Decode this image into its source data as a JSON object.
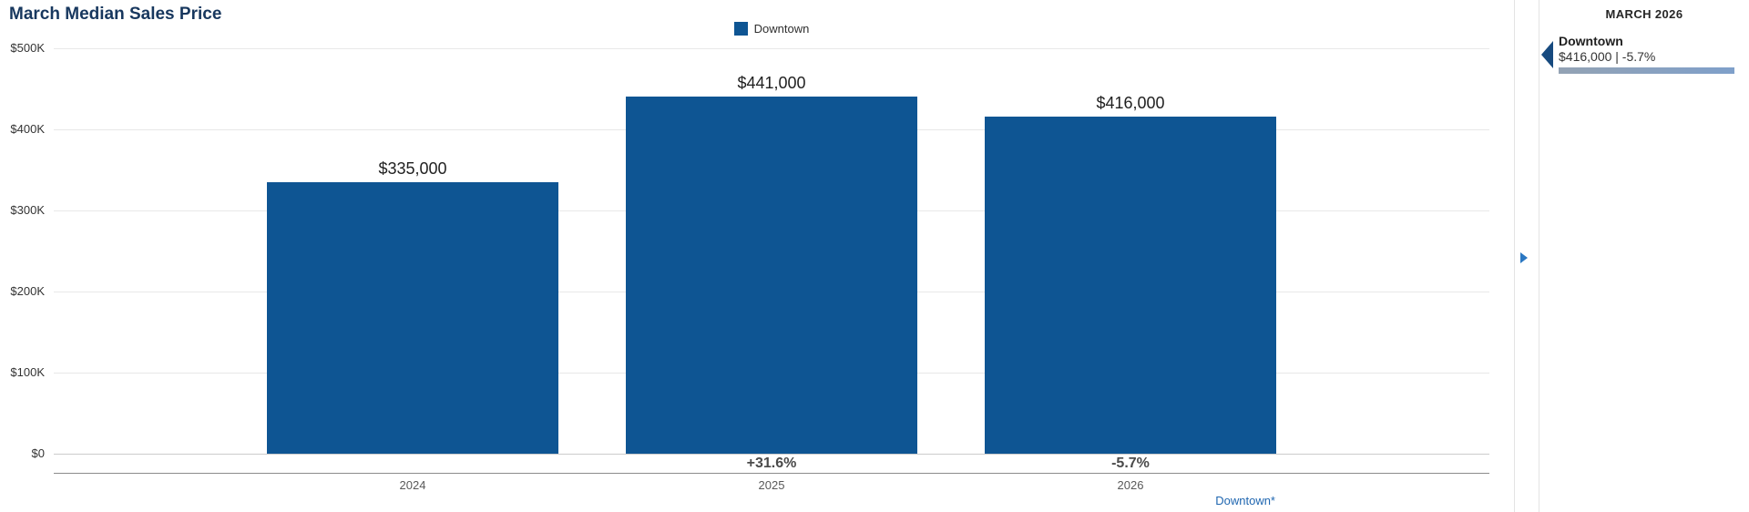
{
  "header": {
    "title": "March Median Sales Price"
  },
  "legend": {
    "items": [
      {
        "label": "Downtown",
        "color": "#0e5593"
      }
    ]
  },
  "chart_data": {
    "type": "bar",
    "title": "March Median Sales Price",
    "categories": [
      "2024",
      "2025",
      "2026"
    ],
    "series": [
      {
        "name": "Downtown",
        "color": "#0e5593",
        "values": [
          335000,
          441000,
          416000
        ]
      }
    ],
    "bar_value_labels": [
      "$335,000",
      "$441,000",
      "$416,000"
    ],
    "pct_change_labels": [
      "",
      "+31.6%",
      "-5.7%"
    ],
    "y_ticks": [
      {
        "value": 0,
        "label": "$0"
      },
      {
        "value": 100000,
        "label": "$100K"
      },
      {
        "value": 200000,
        "label": "$200K"
      },
      {
        "value": 300000,
        "label": "$300K"
      },
      {
        "value": 400000,
        "label": "$400K"
      },
      {
        "value": 500000,
        "label": "$500K"
      }
    ],
    "ylim": [
      0,
      500000
    ],
    "grid": true,
    "legend_position": "top-center",
    "footnote_link": "Downtown*"
  },
  "side_panel": {
    "header": "MARCH 2026",
    "entries": [
      {
        "name": "Downtown",
        "value": "$416,000 | -5.7%",
        "marker_color": "#174a7f",
        "bar_gradient": [
          "#93a2b4",
          "#7fa0ca"
        ]
      }
    ]
  }
}
